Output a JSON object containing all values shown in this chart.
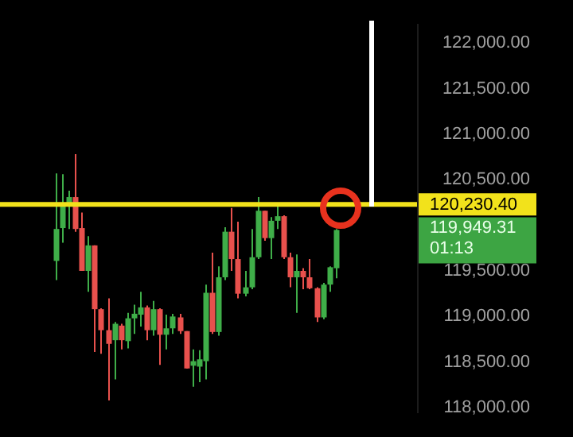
{
  "chart_data": {
    "type": "candlestick",
    "categories": [
      null,
      null,
      null,
      null,
      null,
      null,
      null,
      null,
      null,
      null,
      null,
      null,
      null,
      null,
      null,
      null,
      null,
      null,
      null,
      null,
      null,
      null,
      null,
      null,
      null,
      null,
      null,
      null,
      null,
      null,
      null,
      null,
      null,
      null,
      null,
      null,
      null,
      null,
      null,
      null,
      null,
      null,
      null,
      null,
      null,
      null,
      null,
      null,
      null,
      null,
      null,
      null,
      null,
      null,
      null,
      null,
      null,
      null,
      null,
      null,
      null,
      null,
      null,
      null
    ],
    "ohlc": [
      null,
      null,
      null,
      null,
      null,
      null,
      null,
      null,
      [
        119610,
        120570,
        119400,
        119960
      ],
      [
        119970,
        120560,
        119810,
        120220
      ],
      [
        120220,
        120380,
        119960,
        120310
      ],
      [
        120310,
        120780,
        119930,
        119960
      ],
      [
        119970,
        120140,
        119500,
        119500
      ],
      [
        119500,
        119880,
        119270,
        119780
      ],
      [
        119780,
        119780,
        118610,
        119080
      ],
      [
        119080,
        119090,
        118590,
        118850
      ],
      [
        118850,
        119200,
        118080,
        118700
      ],
      [
        118740,
        118940,
        118310,
        118920
      ],
      [
        118900,
        118920,
        118640,
        118740
      ],
      [
        118730,
        119040,
        118650,
        118980
      ],
      [
        118980,
        119130,
        118810,
        119030
      ],
      [
        119020,
        119270,
        118890,
        119100
      ],
      [
        119100,
        119120,
        118740,
        118850
      ],
      [
        118850,
        119170,
        118790,
        119080
      ],
      [
        119080,
        119090,
        118470,
        118800
      ],
      [
        118800,
        119020,
        118640,
        118870
      ],
      [
        118870,
        119030,
        118810,
        119000
      ],
      [
        118990,
        119030,
        118810,
        118840
      ],
      [
        118840,
        118840,
        118430,
        118430
      ],
      [
        118460,
        118640,
        118230,
        118510
      ],
      [
        118450,
        118630,
        118280,
        118530
      ],
      [
        118510,
        119350,
        118310,
        119260
      ],
      [
        119260,
        119700,
        118810,
        118830
      ],
      [
        118830,
        119550,
        118790,
        119430
      ],
      [
        119430,
        119980,
        119400,
        119930
      ],
      [
        119930,
        120190,
        119500,
        119630
      ],
      [
        119630,
        120040,
        119200,
        119250
      ],
      [
        119250,
        119500,
        119220,
        119320
      ],
      [
        119320,
        119960,
        119300,
        119650
      ],
      [
        119650,
        120310,
        119630,
        120160
      ],
      [
        120160,
        120160,
        119830,
        119860
      ],
      [
        119860,
        120090,
        119630,
        120050
      ],
      [
        120050,
        120210,
        119960,
        120100
      ],
      [
        120100,
        120110,
        119630,
        119650
      ],
      [
        119650,
        119700,
        119320,
        119430
      ],
      [
        119430,
        119680,
        119040,
        119500
      ],
      [
        119500,
        119530,
        119300,
        119430
      ],
      [
        119430,
        119630,
        119300,
        119310
      ],
      [
        119310,
        119320,
        118940,
        118990
      ],
      [
        118990,
        119370,
        118970,
        119350
      ],
      [
        119350,
        119550,
        119270,
        119540
      ],
      [
        119530,
        119960,
        119420,
        119949.31
      ],
      null,
      null,
      null,
      null,
      null,
      null,
      null,
      null,
      null,
      null,
      null,
      null
    ],
    "colors": [
      null,
      null,
      null,
      null,
      null,
      null,
      null,
      null,
      "#3fae49",
      "#3fae49",
      "#3fae49",
      "#e8514d",
      "#e8514d",
      "#3fae49",
      "#e8514d",
      "#e8514d",
      "#e8514d",
      "#3fae49",
      "#e8514d",
      "#3fae49",
      "#3fae49",
      "#3fae49",
      "#e8514d",
      "#3fae49",
      "#e8514d",
      "#3fae49",
      "#3fae49",
      "#e8514d",
      "#e8514d",
      "#3fae49",
      "#3fae49",
      "#3fae49",
      "#e8514d",
      "#3fae49",
      "#3fae49",
      "#e8514d",
      "#e8514d",
      "#3fae49",
      "#3fae49",
      "#3fae49",
      "#e8514d",
      "#3fae49",
      "#3fae49",
      "#e8514d",
      "#e8514d",
      "#3fae49",
      "#e8514d",
      "#e8514d",
      "#e8514d",
      "#3fae49",
      "#3fae49",
      "#3fae49",
      null,
      null,
      null,
      null,
      null,
      null,
      null,
      null,
      null,
      null,
      null,
      null
    ],
    "ylim": [
      117950,
      122200
    ],
    "yticks": [
      {
        "value": 118000,
        "label": "118,000.00"
      },
      {
        "value": 118500,
        "label": "118,500.00"
      },
      {
        "value": 119000,
        "label": "119,000.00"
      },
      {
        "value": 119500,
        "label": "119,500.00"
      },
      {
        "value": 120500,
        "label": "120,500.00"
      },
      {
        "value": 121000,
        "label": "121,000.00"
      },
      {
        "value": 121500,
        "label": "121,500.00"
      },
      {
        "value": 122000,
        "label": "122,000.00"
      }
    ],
    "ref_lines": [
      {
        "axis": "y",
        "value": 120230.4,
        "label": "120,230.40",
        "color": "#f2e21b"
      }
    ],
    "annotations": [
      "119,949.31",
      "01:13"
    ],
    "tick_labels": "y",
    "grid": false
  }
}
